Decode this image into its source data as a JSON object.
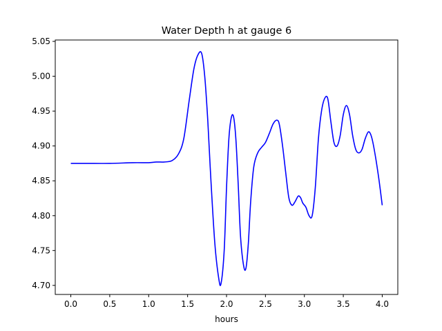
{
  "chart_data": {
    "type": "line",
    "title": "Water Depth h at gauge 6",
    "xlabel": "hours",
    "ylabel": "",
    "xlim": [
      -0.2,
      4.2
    ],
    "ylim": [
      4.687,
      5.052
    ],
    "x_ticks": [
      0.0,
      0.5,
      1.0,
      1.5,
      2.0,
      2.5,
      3.0,
      3.5,
      4.0
    ],
    "x_tick_labels": [
      "0.0",
      "0.5",
      "1.0",
      "1.5",
      "2.0",
      "2.5",
      "3.0",
      "3.5",
      "4.0"
    ],
    "y_ticks": [
      4.7,
      4.75,
      4.8,
      4.85,
      4.9,
      4.95,
      5.0,
      5.05
    ],
    "y_tick_labels": [
      "4.70",
      "4.75",
      "4.80",
      "4.85",
      "4.90",
      "4.95",
      "5.00",
      "5.05"
    ],
    "grid": false,
    "series": [
      {
        "color": "#0000ff",
        "x": [
          0.0,
          0.2,
          0.5,
          0.8,
          1.0,
          1.1,
          1.2,
          1.3,
          1.38,
          1.45,
          1.52,
          1.58,
          1.63,
          1.68,
          1.72,
          1.76,
          1.8,
          1.85,
          1.9,
          1.93,
          1.97,
          2.0,
          2.03,
          2.06,
          2.09,
          2.12,
          2.15,
          2.18,
          2.22,
          2.25,
          2.28,
          2.31,
          2.35,
          2.4,
          2.45,
          2.5,
          2.55,
          2.6,
          2.65,
          2.68,
          2.72,
          2.76,
          2.8,
          2.84,
          2.88,
          2.92,
          2.95,
          2.98,
          3.02,
          3.06,
          3.1,
          3.14,
          3.18,
          3.22,
          3.26,
          3.3,
          3.34,
          3.38,
          3.42,
          3.46,
          3.5,
          3.54,
          3.58,
          3.62,
          3.66,
          3.7,
          3.74,
          3.78,
          3.82,
          3.85,
          3.88,
          3.92,
          3.96,
          4.0
        ],
        "y": [
          4.875,
          4.875,
          4.875,
          4.876,
          4.876,
          4.877,
          4.877,
          4.879,
          4.888,
          4.91,
          4.965,
          5.01,
          5.03,
          5.033,
          5.0,
          4.935,
          4.85,
          4.76,
          4.71,
          4.703,
          4.75,
          4.84,
          4.91,
          4.94,
          4.942,
          4.91,
          4.845,
          4.77,
          4.728,
          4.725,
          4.76,
          4.82,
          4.87,
          4.89,
          4.898,
          4.905,
          4.918,
          4.932,
          4.937,
          4.93,
          4.9,
          4.862,
          4.826,
          4.815,
          4.82,
          4.828,
          4.826,
          4.818,
          4.812,
          4.8,
          4.8,
          4.84,
          4.91,
          4.95,
          4.968,
          4.968,
          4.935,
          4.905,
          4.9,
          4.915,
          4.945,
          4.958,
          4.945,
          4.915,
          4.895,
          4.89,
          4.895,
          4.91,
          4.92,
          4.917,
          4.905,
          4.88,
          4.85,
          4.815
        ]
      }
    ]
  }
}
